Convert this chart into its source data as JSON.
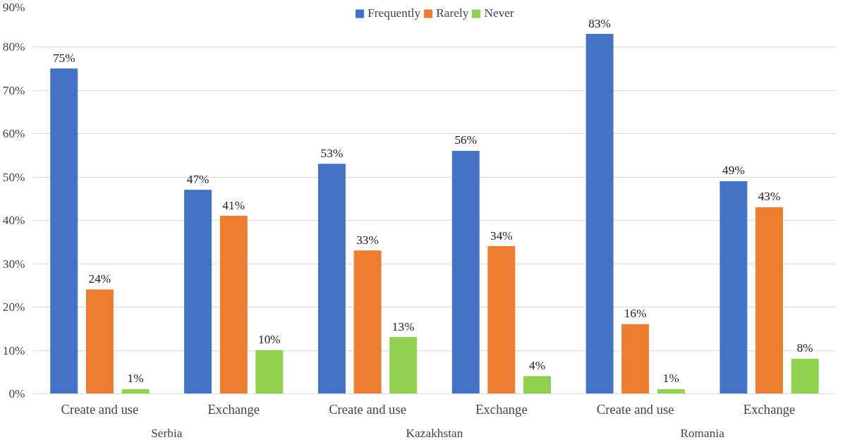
{
  "chart_data": {
    "type": "bar",
    "categories": [
      "Create and use",
      "Exchange",
      "Create and use",
      "Exchange",
      "Create and use",
      "Exchange"
    ],
    "series": [
      {
        "name": "Frequently",
        "color": "#4472c4",
        "values": [
          75,
          47,
          53,
          56,
          83,
          49
        ],
        "value_labels": [
          "75%",
          "47%",
          "53%",
          "56%",
          "83%",
          "49%"
        ]
      },
      {
        "name": "Rarely",
        "color": "#ed7d31",
        "values": [
          24,
          41,
          33,
          34,
          16,
          43
        ],
        "value_labels": [
          "24%",
          "41%",
          "33%",
          "34%",
          "16%",
          "43%"
        ]
      },
      {
        "name": "Never",
        "color": "#92d050",
        "values": [
          1,
          10,
          13,
          4,
          1,
          8
        ],
        "value_labels": [
          "1%",
          "10%",
          "13%",
          "4%",
          "1%",
          "8%"
        ]
      }
    ],
    "annotations": [
      "Serbia",
      "Kazakhstan",
      "Romania"
    ],
    "ylim": [
      0,
      90
    ],
    "yticks": [
      {
        "value": 0,
        "label": "0%"
      },
      {
        "value": 10,
        "label": "10%"
      },
      {
        "value": 20,
        "label": "20%"
      },
      {
        "value": 30,
        "label": "30%"
      },
      {
        "value": 40,
        "label": "40%"
      },
      {
        "value": 50,
        "label": "50%"
      },
      {
        "value": 60,
        "label": "60%"
      },
      {
        "value": 70,
        "label": "70%"
      },
      {
        "value": 80,
        "label": "80%"
      },
      {
        "value": 90,
        "label": "90%"
      }
    ],
    "grid": "y",
    "legend": "top"
  }
}
